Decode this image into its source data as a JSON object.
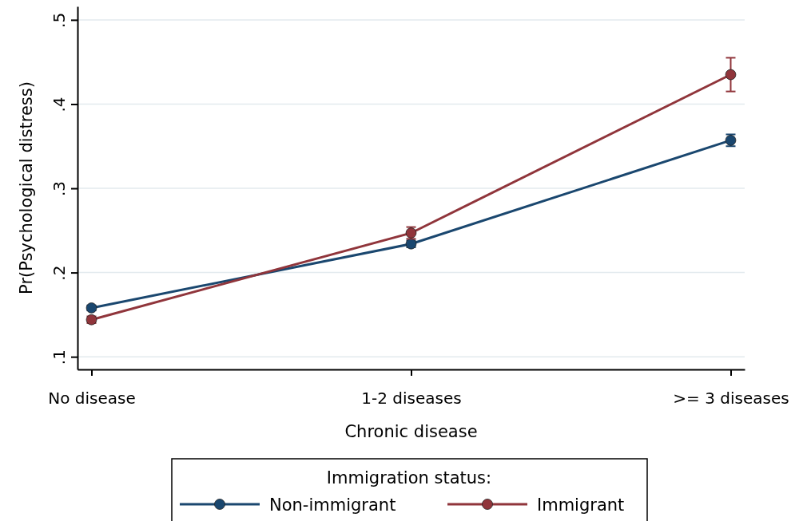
{
  "chart_data": {
    "type": "line",
    "xlabel": "Chronic disease",
    "ylabel": "Pr(Psychological distress)",
    "legend_title": "Immigration status:",
    "categories": [
      "No disease",
      "1-2 diseases",
      ">= 3 diseases"
    ],
    "series": [
      {
        "name": "Non-immigrant",
        "color": "#1a476f",
        "values": [
          0.158,
          0.234,
          0.357
        ],
        "errors": [
          0.003,
          0.004,
          0.007
        ]
      },
      {
        "name": "Immigrant",
        "color": "#90353b",
        "values": [
          0.144,
          0.247,
          0.435
        ],
        "errors": [
          0.004,
          0.007,
          0.02
        ]
      }
    ],
    "ylim": [
      0.085,
      0.516
    ],
    "yticks": [
      {
        "value": 0.1,
        "label": ".1"
      },
      {
        "value": 0.2,
        "label": ".2"
      },
      {
        "value": 0.3,
        "label": ".3"
      },
      {
        "value": 0.4,
        "label": ".4"
      },
      {
        "value": 0.5,
        "label": ".5"
      }
    ],
    "grid": "y",
    "legend": "bottom",
    "marker": "circle",
    "line_style": "solid"
  }
}
